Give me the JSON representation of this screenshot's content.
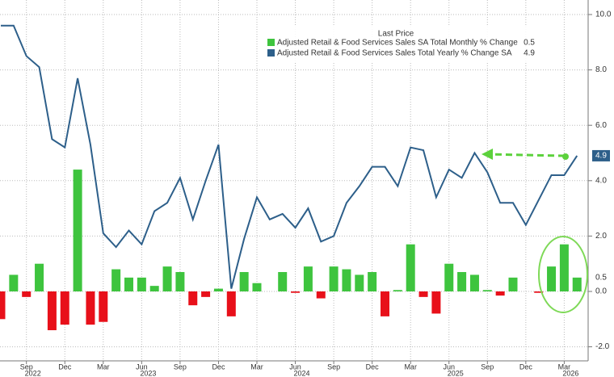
{
  "chart_data": {
    "type": "bar_line",
    "legend_title": "Last Price",
    "categories": [
      null,
      null,
      "Sep",
      null,
      null,
      "Dec",
      null,
      null,
      "Mar",
      null,
      null,
      "Jun",
      null,
      null,
      "Sep",
      null,
      null,
      "Dec",
      null,
      null,
      "Mar",
      null,
      null,
      "Jun",
      null,
      null,
      "Sep",
      null,
      null,
      "Dec",
      null,
      null,
      "Mar",
      null,
      null,
      "Jun",
      null,
      null,
      "Sep",
      null,
      null,
      "Dec",
      null,
      null,
      "Mar",
      null
    ],
    "year_labels": [
      {
        "label": "2022",
        "category": 2
      },
      {
        "label": "2023",
        "category": 11
      },
      {
        "label": "2024",
        "category": 23
      },
      {
        "label": "2025",
        "category": 35
      },
      {
        "label": "2026",
        "category": 44
      }
    ],
    "series": [
      {
        "name": "Adjusted Retail & Food Services Sales SA Total Monthly % Change",
        "type": "bar",
        "color": "#3ec43e",
        "negative_color": "#e8101a",
        "values": [
          -1.0,
          0.6,
          -0.2,
          1.0,
          -1.4,
          -1.2,
          4.4,
          -1.2,
          -1.1,
          0.8,
          0.5,
          0.5,
          0.2,
          0.9,
          0.7,
          -0.5,
          -0.2,
          0.1,
          -0.9,
          0.7,
          0.3,
          0.0,
          0.7,
          -0.05,
          0.9,
          -0.25,
          0.9,
          0.8,
          0.6,
          0.7,
          -0.9,
          0.05,
          1.7,
          -0.2,
          -0.8,
          1.0,
          0.7,
          0.6,
          0.05,
          -0.15,
          0.5,
          0.0,
          -0.05,
          0.9,
          1.7,
          0.5
        ]
      },
      {
        "name": "Adjusted Retail & Food Services Sales Total Yearly % Change SA",
        "type": "line",
        "color": "#2d5f8a",
        "values": [
          9.6,
          9.6,
          8.5,
          8.1,
          5.5,
          5.2,
          7.7,
          5.3,
          2.1,
          1.6,
          2.2,
          1.7,
          2.9,
          3.2,
          4.1,
          2.6,
          4.0,
          5.3,
          0.1,
          1.9,
          3.4,
          2.6,
          2.8,
          2.3,
          3.0,
          1.8,
          2.0,
          3.2,
          3.8,
          4.5,
          4.5,
          3.8,
          5.2,
          5.1,
          3.4,
          4.4,
          4.1,
          5.0,
          4.3,
          3.2,
          3.2,
          2.4,
          3.3,
          4.2,
          4.2,
          4.9
        ]
      }
    ],
    "ylim": [
      -2.5,
      10.5
    ],
    "yticks": [
      {
        "value": -2,
        "label": "-2.0"
      },
      {
        "value": 0,
        "label": "0.0"
      },
      {
        "value": 2,
        "label": "2.0"
      },
      {
        "value": 4,
        "label": "4.0"
      },
      {
        "value": 6,
        "label": "6.0"
      },
      {
        "value": 8,
        "label": "8.0"
      },
      {
        "value": 10,
        "label": "10.0"
      }
    ],
    "grid": true
  }
}
